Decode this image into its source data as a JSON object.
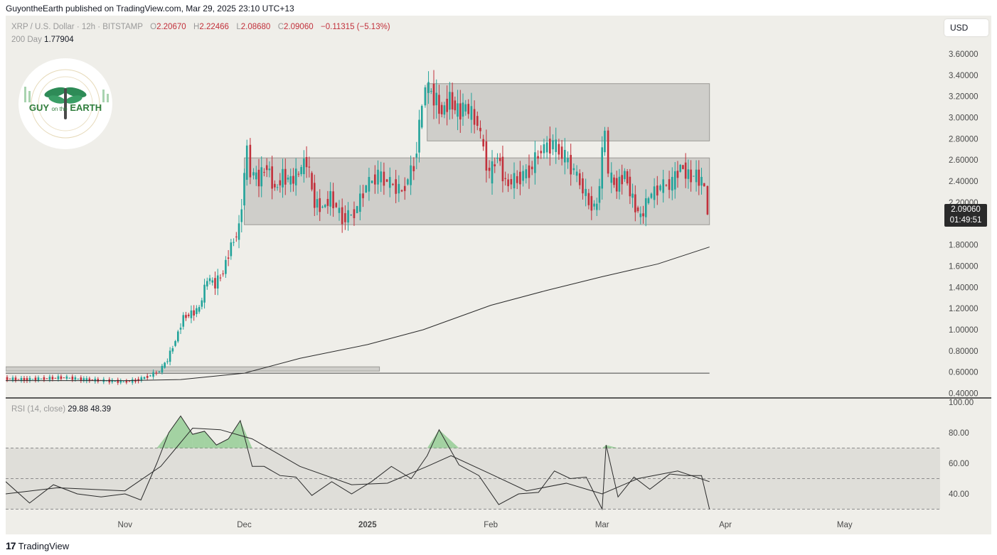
{
  "publisher": "GuyontheEarth published on TradingView.com, Mar 29, 2025 23:10 UTC+13",
  "legend": {
    "symbol": "XRP / U.S. Dollar · 12h · BITSTAMP",
    "o_label": "O",
    "o_val": "2.20670",
    "h_label": "H",
    "h_val": "2.22466",
    "l_label": "L",
    "l_val": "2.08680",
    "c_label": "C",
    "c_val": "2.09060",
    "change": "−0.11315 (−5.13%)"
  },
  "ma_legend": {
    "label": "200 Day",
    "value": "1.77904"
  },
  "rsi_legend": {
    "label": "RSI (14, close)",
    "rsi": "29.88",
    "ma": "48.39"
  },
  "currency_button": "USD",
  "last_price": {
    "price": "2.09060",
    "countdown": "01:49:51"
  },
  "logo_text": {
    "left": "GUY",
    "small1": "on the",
    "right": "EARTH"
  },
  "footer": {
    "brand": "TradingView",
    "icon": "tradingview-logo-icon"
  },
  "colors": {
    "up": "#22a39a",
    "down": "#c2303b",
    "box": "#c9c8c4",
    "background": "#efeee9",
    "rsi_fill": "#6fbf73"
  },
  "chart_data": [
    {
      "type": "candlestick",
      "title": "XRP / U.S. Dollar · 12h · BITSTAMP",
      "y_axis_ticks": [
        "3.60000",
        "3.40000",
        "3.20000",
        "3.00000",
        "2.80000",
        "2.60000",
        "2.40000",
        "2.20000",
        "2.00000",
        "1.80000",
        "1.60000",
        "1.40000",
        "1.20000",
        "1.00000",
        "0.80000",
        "0.60000",
        "0.40000"
      ],
      "ylim": [
        0.37,
        3.72
      ],
      "x_axis_ticks": [
        "Nov",
        "Dec",
        "2025",
        "Feb",
        "Mar",
        "Apr",
        "May"
      ],
      "x_tick_dates": [
        "2024-11-01",
        "2024-12-01",
        "2025-01-01",
        "2025-02-01",
        "2025-03-01",
        "2025-04-01",
        "2025-05-01"
      ],
      "x_range_dates": [
        "2024-10-02",
        "2025-05-25"
      ],
      "close_series": {
        "name": "XRP close (12h, approximate)",
        "dates": [
          "2024-10-02",
          "2024-10-07",
          "2024-10-12",
          "2024-10-17",
          "2024-10-22",
          "2024-10-27",
          "2024-11-01",
          "2024-11-04",
          "2024-11-07",
          "2024-11-10",
          "2024-11-12",
          "2024-11-14",
          "2024-11-16",
          "2024-11-18",
          "2024-11-20",
          "2024-11-22",
          "2024-11-24",
          "2024-11-26",
          "2024-11-28",
          "2024-11-30",
          "2024-12-02",
          "2024-12-03",
          "2024-12-05",
          "2024-12-07",
          "2024-12-09",
          "2024-12-11",
          "2024-12-13",
          "2024-12-15",
          "2024-12-17",
          "2024-12-19",
          "2024-12-21",
          "2024-12-23",
          "2024-12-26",
          "2024-12-29",
          "2025-01-01",
          "2025-01-04",
          "2025-01-07",
          "2025-01-10",
          "2025-01-13",
          "2025-01-15",
          "2025-01-16",
          "2025-01-18",
          "2025-01-20",
          "2025-01-22",
          "2025-01-24",
          "2025-01-26",
          "2025-01-29",
          "2025-02-01",
          "2025-02-03",
          "2025-02-05",
          "2025-02-08",
          "2025-02-11",
          "2025-02-14",
          "2025-02-17",
          "2025-02-20",
          "2025-02-23",
          "2025-02-26",
          "2025-02-28",
          "2025-03-02",
          "2025-03-03",
          "2025-03-05",
          "2025-03-07",
          "2025-03-09",
          "2025-03-11",
          "2025-03-13",
          "2025-03-16",
          "2025-03-19",
          "2025-03-21",
          "2025-03-23",
          "2025-03-25",
          "2025-03-27",
          "2025-03-28"
        ],
        "values": [
          0.54,
          0.53,
          0.54,
          0.55,
          0.53,
          0.52,
          0.51,
          0.52,
          0.56,
          0.61,
          0.72,
          0.9,
          1.12,
          1.15,
          1.2,
          1.48,
          1.43,
          1.55,
          1.8,
          1.95,
          2.7,
          2.48,
          2.42,
          2.55,
          2.32,
          2.45,
          2.4,
          2.48,
          2.6,
          2.2,
          2.15,
          2.25,
          2.05,
          2.1,
          2.36,
          2.45,
          2.38,
          2.3,
          2.55,
          3.1,
          3.3,
          3.2,
          3.05,
          3.18,
          3.05,
          3.1,
          2.95,
          2.45,
          2.65,
          2.38,
          2.42,
          2.5,
          2.7,
          2.75,
          2.62,
          2.45,
          2.2,
          2.15,
          2.9,
          2.45,
          2.35,
          2.48,
          2.22,
          2.05,
          2.25,
          2.35,
          2.38,
          2.55,
          2.45,
          2.45,
          2.35,
          2.09
        ]
      },
      "last": {
        "date": "2025-03-28",
        "open": 2.2067,
        "high": 2.22466,
        "low": 2.0868,
        "close": 2.0906
      },
      "series": [
        {
          "name": "200 Day",
          "dates": [
            "2024-10-02",
            "2024-11-01",
            "2024-11-15",
            "2024-12-01",
            "2024-12-15",
            "2025-01-01",
            "2025-01-15",
            "2025-02-01",
            "2025-02-15",
            "2025-03-01",
            "2025-03-15",
            "2025-03-28"
          ],
          "values": [
            0.52,
            0.52,
            0.53,
            0.59,
            0.73,
            0.86,
            1.0,
            1.23,
            1.37,
            1.5,
            1.62,
            1.78
          ]
        }
      ],
      "zones": [
        {
          "label": "upper range",
          "x": [
            "2025-01-16",
            "2025-03-28"
          ],
          "y": [
            2.78,
            3.32
          ]
        },
        {
          "label": "middle range",
          "x": [
            "2024-12-01",
            "2025-03-28"
          ],
          "y": [
            1.99,
            2.62
          ]
        },
        {
          "label": "lower range",
          "x": [
            "2024-10-02",
            "2025-01-04"
          ],
          "y": [
            0.61,
            0.65
          ]
        }
      ],
      "hline": {
        "value": 0.59,
        "x": [
          "2024-10-02",
          "2025-03-28"
        ]
      },
      "legend": "top-left",
      "grid": false
    },
    {
      "type": "line",
      "title": "RSI (14, close)",
      "y_axis_ticks": [
        "100.00",
        "80.00",
        "60.00",
        "40.00"
      ],
      "ylim": [
        20,
        100
      ],
      "bands": [
        30,
        50,
        70
      ],
      "series": [
        {
          "name": "RSI",
          "dates": [
            "2024-10-02",
            "2024-10-08",
            "2024-10-14",
            "2024-10-20",
            "2024-10-26",
            "2024-11-01",
            "2024-11-05",
            "2024-11-09",
            "2024-11-12",
            "2024-11-15",
            "2024-11-18",
            "2024-11-21",
            "2024-11-24",
            "2024-11-27",
            "2024-11-30",
            "2024-12-03",
            "2024-12-06",
            "2024-12-10",
            "2024-12-14",
            "2024-12-18",
            "2024-12-23",
            "2024-12-28",
            "2025-01-02",
            "2025-01-07",
            "2025-01-12",
            "2025-01-16",
            "2025-01-19",
            "2025-01-24",
            "2025-01-29",
            "2025-02-03",
            "2025-02-08",
            "2025-02-13",
            "2025-02-17",
            "2025-02-21",
            "2025-02-25",
            "2025-03-01",
            "2025-03-02",
            "2025-03-05",
            "2025-03-09",
            "2025-03-13",
            "2025-03-18",
            "2025-03-22",
            "2025-03-26",
            "2025-03-28"
          ],
          "values": [
            48,
            34,
            46,
            40,
            38,
            40,
            36,
            60,
            80,
            91,
            79,
            81,
            72,
            76,
            88,
            58,
            58,
            52,
            51,
            39,
            48,
            40,
            48,
            58,
            50,
            65,
            82,
            59,
            52,
            33,
            40,
            41,
            55,
            50,
            51,
            30,
            72,
            38,
            51,
            43,
            53,
            52,
            52,
            30
          ]
        },
        {
          "name": "RSI MA",
          "dates": [
            "2024-10-02",
            "2024-10-15",
            "2024-11-01",
            "2024-11-10",
            "2024-11-18",
            "2024-11-25",
            "2024-12-03",
            "2024-12-15",
            "2024-12-28",
            "2025-01-06",
            "2025-01-16",
            "2025-01-22",
            "2025-02-01",
            "2025-02-10",
            "2025-02-20",
            "2025-03-01",
            "2025-03-10",
            "2025-03-20",
            "2025-03-28"
          ],
          "values": [
            40,
            44,
            42,
            58,
            83,
            82,
            76,
            58,
            46,
            47,
            58,
            65,
            53,
            42,
            47,
            40,
            50,
            55,
            48
          ]
        }
      ],
      "legend": "top-left",
      "grid": false
    }
  ]
}
